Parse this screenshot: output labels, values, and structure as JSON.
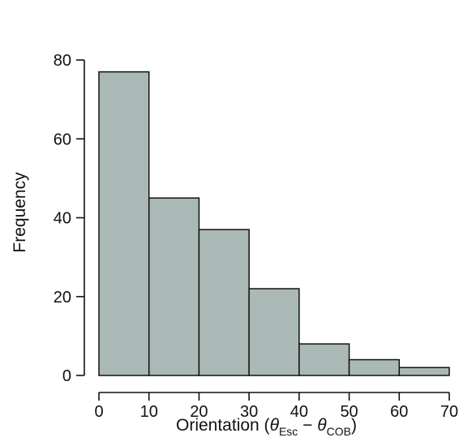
{
  "chart_data": {
    "type": "bar",
    "histogram": true,
    "bin_edges": [
      0,
      10,
      20,
      30,
      40,
      50,
      60,
      70
    ],
    "values": [
      77,
      45,
      37,
      22,
      8,
      4,
      2
    ],
    "xlim": [
      0,
      70
    ],
    "ylim": [
      0,
      80
    ],
    "xticks": [
      "0",
      "10",
      "20",
      "30",
      "40",
      "50",
      "60",
      "70"
    ],
    "yticks": [
      "0",
      "20",
      "40",
      "60",
      "80"
    ],
    "ylabel": "Frequency",
    "xlabel": {
      "prefix": "Orientation (",
      "theta1": "θ",
      "sub1": "Esc",
      "minus": " − ",
      "theta2": "θ",
      "sub2": "COB",
      "suffix": ")"
    },
    "grid": false,
    "colors": {
      "bar_fill": "#abb9b6",
      "bar_edge": "#111111"
    }
  }
}
